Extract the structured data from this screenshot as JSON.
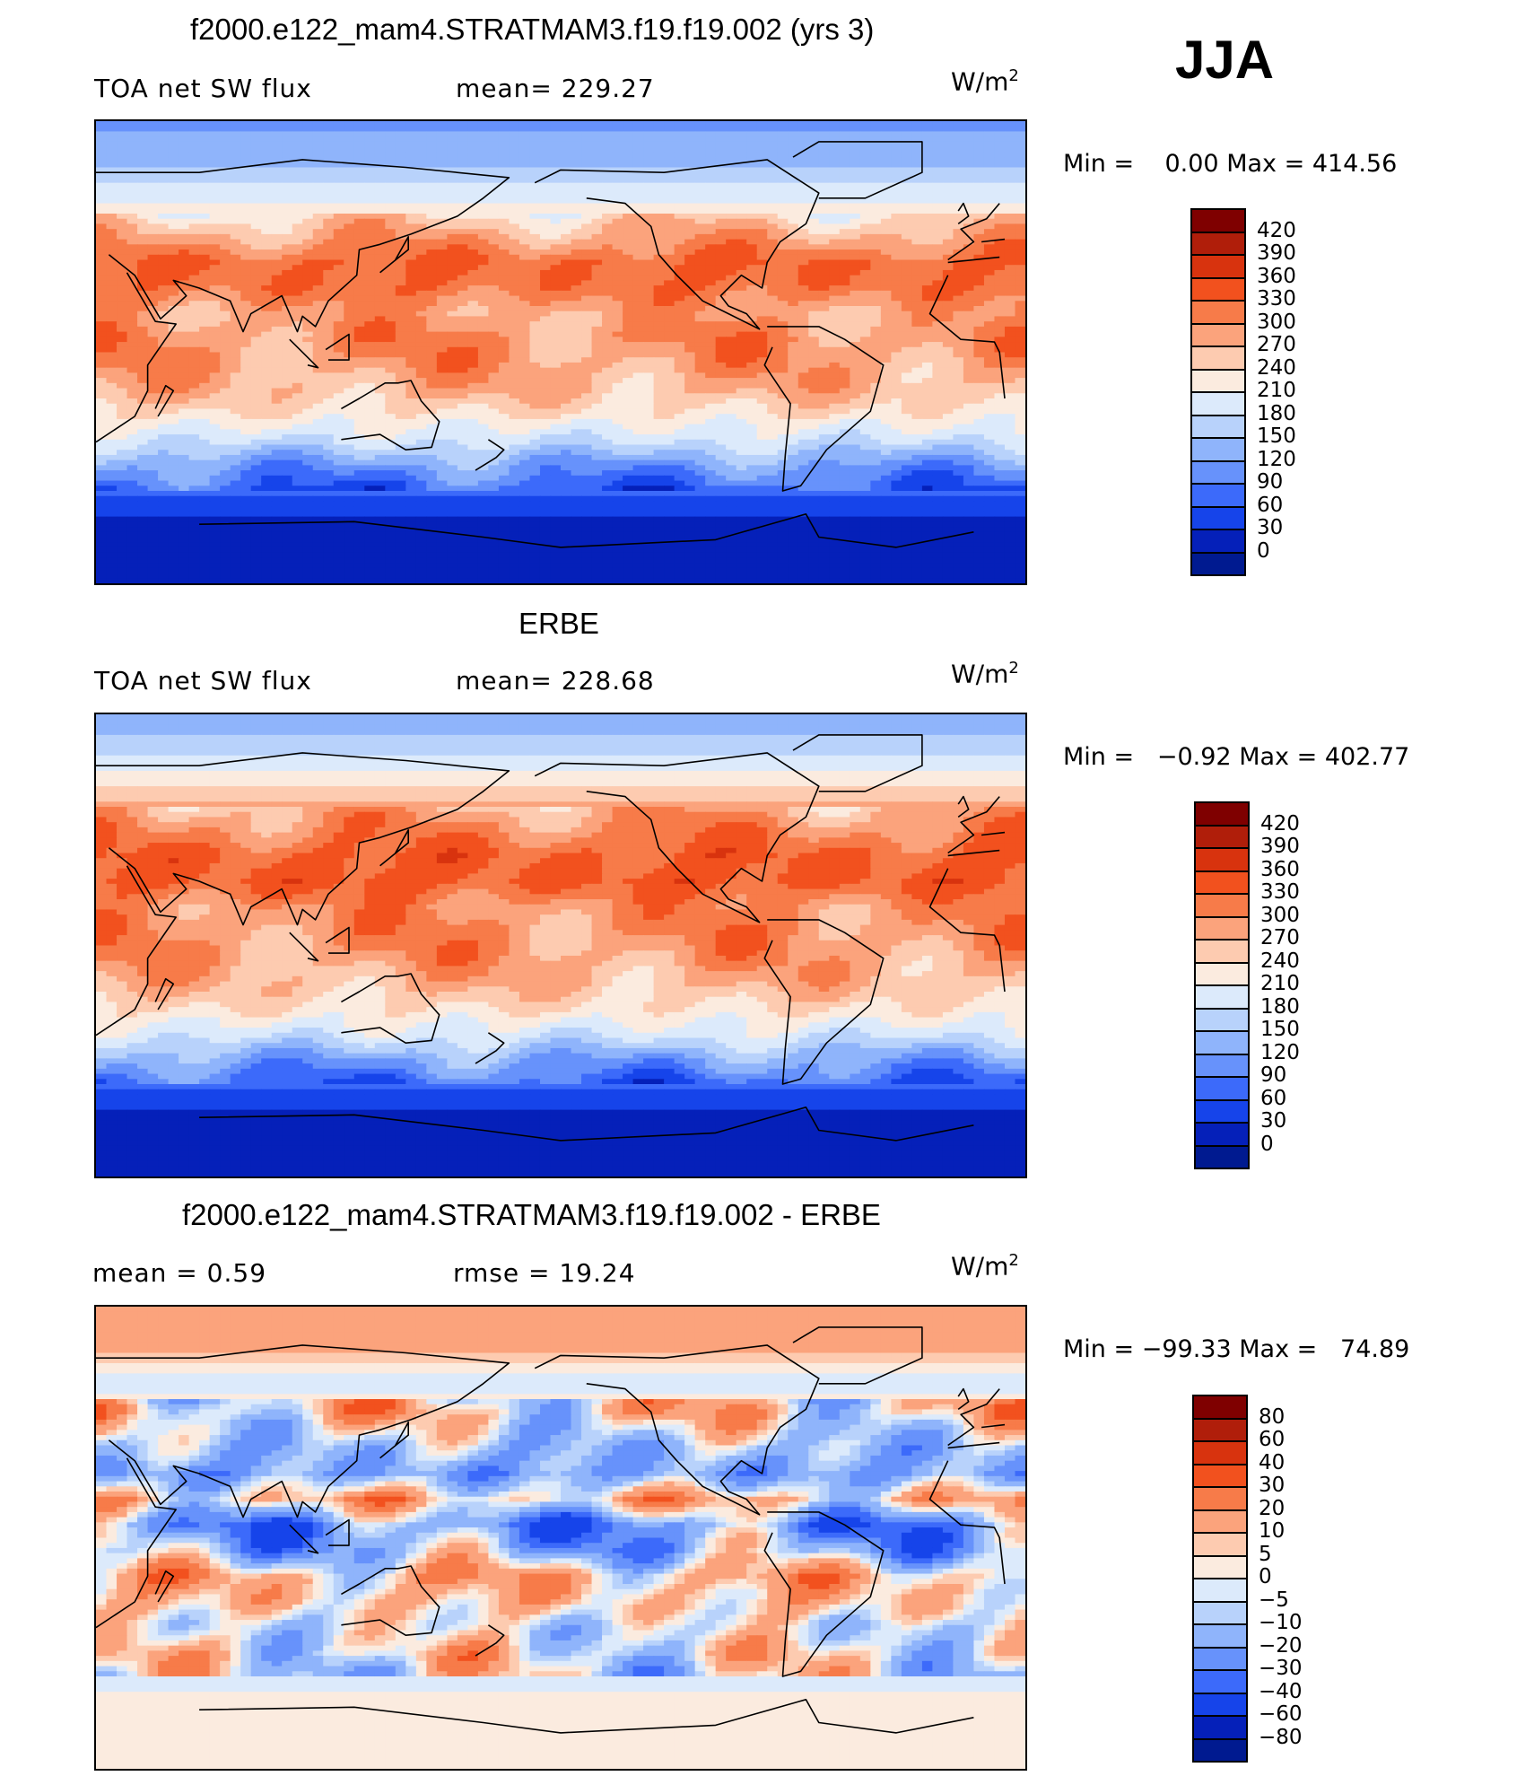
{
  "season": "JJA",
  "units": {
    "base": "W/m",
    "exp": "2"
  },
  "chart_data": [
    {
      "type": "heatmap",
      "title": "f2000.e122_mam4.STRATMAM3.f19.f19.002 (yrs 3)",
      "left_label": "TOA net SW flux",
      "stat_label": "mean= 229.27",
      "mean": 229.27,
      "min_label": "Min =",
      "min_value": "0.00",
      "max_label": "Max =",
      "max_value": "414.56",
      "levels": [
        "420",
        "390",
        "360",
        "330",
        "300",
        "270",
        "240",
        "210",
        "180",
        "150",
        "120",
        "90",
        "60",
        "30",
        "0"
      ],
      "colors": [
        "#7f0000",
        "#b01e0a",
        "#d8330e",
        "#f2511e",
        "#f77b49",
        "#fba37c",
        "#fdcbb0",
        "#fbebdf",
        "#dceafb",
        "#b8d2fb",
        "#8fb4fb",
        "#6792fb",
        "#3c6afa",
        "#1644ea",
        "#0520b9",
        "#001a90"
      ],
      "lat_profile": [
        [
          90,
          110
        ],
        [
          75,
          140
        ],
        [
          60,
          200
        ],
        [
          50,
          260
        ],
        [
          35,
          330
        ],
        [
          25,
          320
        ],
        [
          15,
          285
        ],
        [
          5,
          300
        ],
        [
          -5,
          290
        ],
        [
          -15,
          270
        ],
        [
          -25,
          230
        ],
        [
          -35,
          180
        ],
        [
          -45,
          110
        ],
        [
          -55,
          60
        ],
        [
          -65,
          25
        ],
        [
          -90,
          12
        ]
      ]
    },
    {
      "type": "heatmap",
      "title": "ERBE",
      "left_label": "TOA net SW flux",
      "stat_label": "mean= 228.68",
      "mean": 228.68,
      "min_label": "Min =",
      "min_value": "−0.92",
      "max_label": "Max =",
      "max_value": "402.77",
      "levels": [
        "420",
        "390",
        "360",
        "330",
        "300",
        "270",
        "240",
        "210",
        "180",
        "150",
        "120",
        "90",
        "60",
        "30",
        "0"
      ],
      "colors": [
        "#7f0000",
        "#b01e0a",
        "#d8330e",
        "#f2511e",
        "#f77b49",
        "#fba37c",
        "#fdcbb0",
        "#fbebdf",
        "#dceafb",
        "#b8d2fb",
        "#8fb4fb",
        "#6792fb",
        "#3c6afa",
        "#1644ea",
        "#0520b9",
        "#001a90"
      ],
      "lat_profile": [
        [
          90,
          120
        ],
        [
          75,
          170
        ],
        [
          60,
          250
        ],
        [
          50,
          290
        ],
        [
          35,
          335
        ],
        [
          25,
          340
        ],
        [
          15,
          300
        ],
        [
          5,
          300
        ],
        [
          -5,
          290
        ],
        [
          -15,
          270
        ],
        [
          -25,
          235
        ],
        [
          -35,
          190
        ],
        [
          -45,
          120
        ],
        [
          -55,
          65
        ],
        [
          -65,
          25
        ],
        [
          -90,
          10
        ]
      ]
    },
    {
      "type": "heatmap",
      "title": "f2000.e122_mam4.STRATMAM3.f19.f19.002 - ERBE",
      "left_label": "mean =   0.59",
      "stat_label": "rmse =   19.24",
      "mean": 0.59,
      "rmse": 19.24,
      "min_label": "Min =",
      "min_value": "−99.33",
      "max_label": "Max =",
      "max_value": "74.89",
      "levels": [
        "80",
        "60",
        "40",
        "30",
        "20",
        "10",
        "5",
        "0",
        "−5",
        "−10",
        "−20",
        "−30",
        "−40",
        "−60",
        "−80"
      ],
      "colors": [
        "#7f0000",
        "#b01e0a",
        "#d8330e",
        "#f2511e",
        "#f77b49",
        "#fba37c",
        "#fdcbb0",
        "#fbebdf",
        "#dceafb",
        "#b8d2fb",
        "#8fb4fb",
        "#6792fb",
        "#3c6afa",
        "#1644ea",
        "#0520b9",
        "#001a90"
      ],
      "lat_profile": [
        [
          90,
          10
        ],
        [
          75,
          15
        ],
        [
          60,
          -5
        ],
        [
          50,
          8
        ],
        [
          35,
          -12
        ],
        [
          25,
          -20
        ],
        [
          15,
          10
        ],
        [
          5,
          -25
        ],
        [
          -5,
          -15
        ],
        [
          -15,
          12
        ],
        [
          -25,
          8
        ],
        [
          -35,
          -3
        ],
        [
          -45,
          2
        ],
        [
          -55,
          -4
        ],
        [
          -65,
          3
        ],
        [
          -90,
          3
        ]
      ]
    }
  ]
}
